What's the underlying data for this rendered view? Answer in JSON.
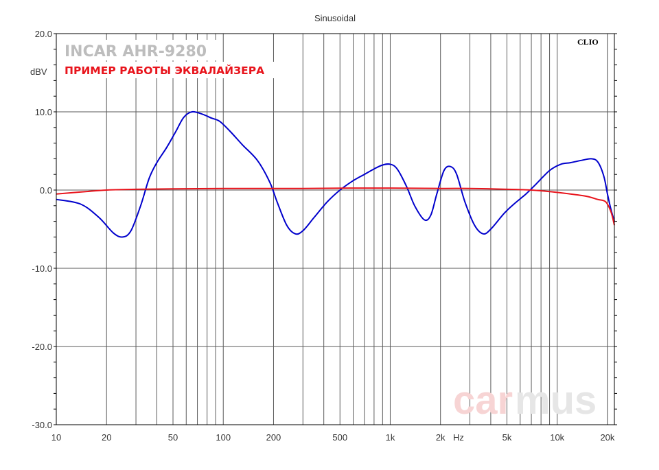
{
  "chart_data": {
    "type": "line",
    "title": "Sinusoidal",
    "ylabel": "dBV",
    "xlabel_unit": "Hz",
    "xscale": "log",
    "xlim": [
      10,
      22000
    ],
    "ylim": [
      -30,
      20
    ],
    "yticks": [
      20,
      10,
      0,
      -10,
      -20,
      -30
    ],
    "ytick_labels": [
      "20.0",
      "10.0",
      "0.0",
      "-10.0",
      "-20.0",
      "-30.0"
    ],
    "xtick_labels": [
      {
        "value": 10,
        "label": "10"
      },
      {
        "value": 20,
        "label": "20"
      },
      {
        "value": 50,
        "label": "50"
      },
      {
        "value": 100,
        "label": "100"
      },
      {
        "value": 200,
        "label": "200"
      },
      {
        "value": 500,
        "label": "500"
      },
      {
        "value": 1000,
        "label": "1k"
      },
      {
        "value": 2000,
        "label": "2k"
      },
      {
        "value": 5000,
        "label": "5k"
      },
      {
        "value": 10000,
        "label": "10k"
      },
      {
        "value": 20000,
        "label": "20k"
      }
    ],
    "grid": true,
    "brand_label": "CLIO",
    "overlay_title": "INCAR AHR-9280",
    "overlay_subtitle": "ПРИМЕР РАБОТЫ ЭКВАЛАЙЗЕРА",
    "watermark_part1": "car",
    "watermark_part2": "mus",
    "series": [
      {
        "color": "#0000cc",
        "points": [
          [
            10,
            -1.2
          ],
          [
            14,
            -1.8
          ],
          [
            18,
            -3.5
          ],
          [
            22,
            -5.5
          ],
          [
            25,
            -6.0
          ],
          [
            28,
            -5.2
          ],
          [
            32,
            -2.0
          ],
          [
            36,
            1.5
          ],
          [
            40,
            3.5
          ],
          [
            46,
            5.5
          ],
          [
            52,
            7.5
          ],
          [
            58,
            9.3
          ],
          [
            65,
            10.0
          ],
          [
            75,
            9.7
          ],
          [
            85,
            9.2
          ],
          [
            95,
            8.8
          ],
          [
            110,
            7.5
          ],
          [
            130,
            5.8
          ],
          [
            160,
            3.8
          ],
          [
            190,
            1.0
          ],
          [
            210,
            -1.5
          ],
          [
            240,
            -4.5
          ],
          [
            270,
            -5.6
          ],
          [
            300,
            -5.2
          ],
          [
            350,
            -3.5
          ],
          [
            420,
            -1.5
          ],
          [
            500,
            0.0
          ],
          [
            600,
            1.2
          ],
          [
            700,
            2.0
          ],
          [
            800,
            2.7
          ],
          [
            900,
            3.2
          ],
          [
            1000,
            3.3
          ],
          [
            1100,
            2.7
          ],
          [
            1250,
            0.5
          ],
          [
            1400,
            -2.0
          ],
          [
            1600,
            -3.8
          ],
          [
            1750,
            -3.2
          ],
          [
            1900,
            -0.5
          ],
          [
            2100,
            2.5
          ],
          [
            2300,
            3.0
          ],
          [
            2500,
            2.0
          ],
          [
            2800,
            -1.5
          ],
          [
            3200,
            -4.5
          ],
          [
            3600,
            -5.6
          ],
          [
            4000,
            -5.0
          ],
          [
            4800,
            -3.0
          ],
          [
            5500,
            -1.8
          ],
          [
            6500,
            -0.5
          ],
          [
            7500,
            0.8
          ],
          [
            9000,
            2.5
          ],
          [
            10500,
            3.3
          ],
          [
            12000,
            3.5
          ],
          [
            14000,
            3.8
          ],
          [
            16000,
            4.0
          ],
          [
            17500,
            3.6
          ],
          [
            19000,
            1.8
          ],
          [
            20000,
            -0.5
          ],
          [
            21000,
            -2.5
          ],
          [
            22000,
            -4.0
          ]
        ]
      },
      {
        "color": "#e8141c",
        "points": [
          [
            10,
            -0.5
          ],
          [
            15,
            -0.2
          ],
          [
            20,
            0.0
          ],
          [
            30,
            0.1
          ],
          [
            50,
            0.15
          ],
          [
            100,
            0.2
          ],
          [
            300,
            0.2
          ],
          [
            600,
            0.25
          ],
          [
            1000,
            0.25
          ],
          [
            2000,
            0.2
          ],
          [
            3000,
            0.2
          ],
          [
            5000,
            0.1
          ],
          [
            7000,
            0.0
          ],
          [
            9000,
            -0.2
          ],
          [
            12000,
            -0.5
          ],
          [
            15000,
            -0.8
          ],
          [
            17500,
            -1.2
          ],
          [
            19500,
            -1.5
          ],
          [
            21000,
            -2.8
          ],
          [
            22000,
            -4.5
          ]
        ]
      }
    ]
  }
}
